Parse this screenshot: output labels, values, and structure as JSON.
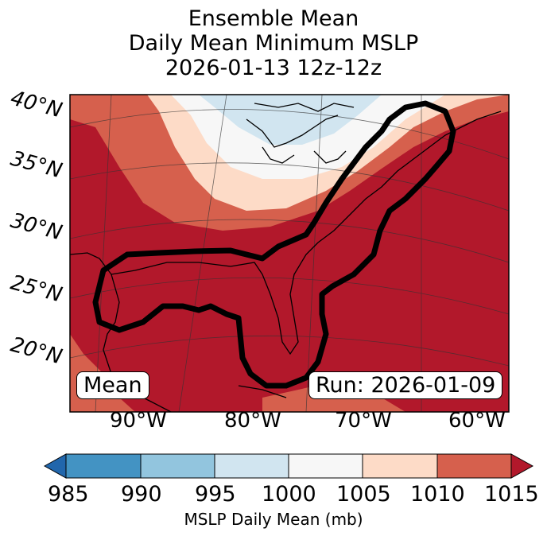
{
  "title_lines": [
    "Ensemble Mean",
    "Daily Mean Minimum MSLP",
    "2026-01-13 12z-12z"
  ],
  "lat_labels": [
    "40°N",
    "35°N",
    "30°N",
    "25°N",
    "20°N"
  ],
  "lon_labels": [
    "90°W",
    "80°W",
    "70°W",
    "60°W"
  ],
  "mean_box": "Mean",
  "run_box": "Run: 2026-01-09",
  "colorbar": {
    "ticks": [
      "985",
      "990",
      "995",
      "1000",
      "1005",
      "1010",
      "1015"
    ],
    "colors": [
      "#2166ac",
      "#4393c3",
      "#92c5de",
      "#d1e5f0",
      "#f7f7f7",
      "#fddbc7",
      "#d6604d",
      "#b2182b"
    ],
    "label": "MSLP Daily Mean (mb)"
  }
}
